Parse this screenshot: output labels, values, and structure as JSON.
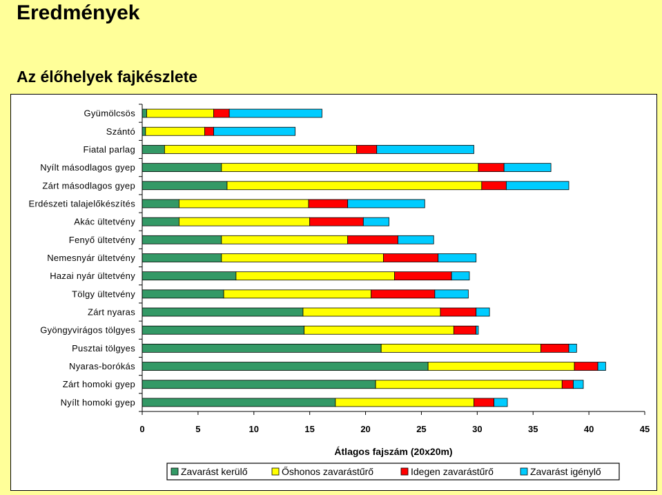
{
  "header": {
    "title": "Eredmények",
    "subtitle": "Az élőhelyek fajkészlete"
  },
  "chart_data": {
    "type": "bar",
    "orientation": "horizontal",
    "stacked": true,
    "title": "",
    "xlabel": "Átlagos fajszám (20x20m)",
    "ylabel": "",
    "xlim": [
      0,
      45
    ],
    "xticks": [
      0,
      5,
      10,
      15,
      20,
      25,
      30,
      35,
      40,
      45
    ],
    "grid": false,
    "legend_position": "bottom",
    "categories": [
      "Gyümölcsös",
      "Szántó",
      "Fiatal parlag",
      "Nyílt másodlagos gyep",
      "Zárt másodlagos gyep",
      "Erdészeti talajelőkészítés",
      "Akác ültetvény",
      "Fenyő ültetvény",
      "Nemesnyár ültetvény",
      "Hazai nyár ültetvény",
      "Tölgy ültetvény",
      "Zárt nyaras",
      "Gyöngyvirágos tölgyes",
      "Pusztai tölgyes",
      "Nyaras-borókás",
      "Zárt homoki gyep",
      "Nyílt homoki gyep"
    ],
    "series": [
      {
        "name": "Zavarást kerülő",
        "color": "#339966",
        "values": [
          0.4,
          0.3,
          2.0,
          7.1,
          7.6,
          3.3,
          3.3,
          7.1,
          7.1,
          8.4,
          7.3,
          14.4,
          14.5,
          21.4,
          25.6,
          20.9,
          17.3
        ]
      },
      {
        "name": "Őshonos zavarástűrő",
        "color": "#ffff00",
        "values": [
          6.0,
          5.3,
          17.2,
          23.0,
          22.8,
          11.6,
          11.7,
          11.3,
          14.5,
          14.2,
          13.2,
          12.3,
          13.4,
          14.3,
          13.1,
          16.7,
          12.4
        ]
      },
      {
        "name": "Idegen zavarástűrő",
        "color": "#ff0000",
        "values": [
          1.4,
          0.8,
          1.8,
          2.3,
          2.2,
          3.5,
          4.8,
          4.5,
          4.9,
          5.1,
          5.7,
          3.2,
          2.0,
          2.5,
          2.1,
          1.0,
          1.8
        ]
      },
      {
        "name": "Zavarást igénylő",
        "color": "#00ccff",
        "values": [
          8.3,
          7.3,
          8.7,
          4.2,
          5.6,
          6.9,
          2.3,
          3.2,
          3.4,
          1.6,
          3.0,
          1.2,
          0.2,
          0.7,
          0.7,
          0.9,
          1.2
        ]
      }
    ]
  }
}
